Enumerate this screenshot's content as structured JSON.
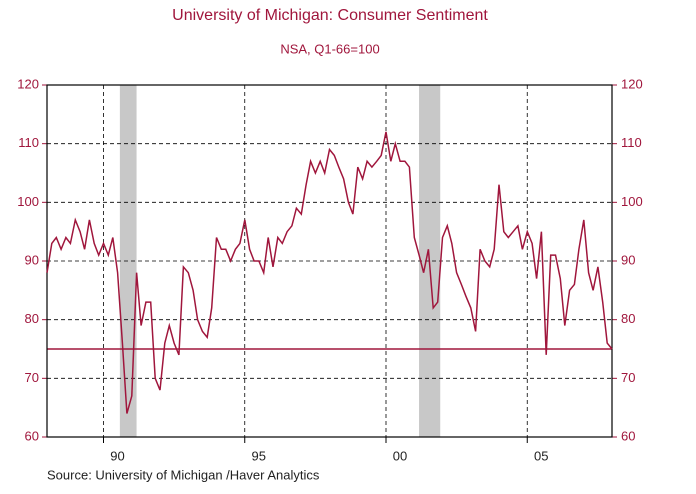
{
  "chart_data": {
    "type": "line",
    "title": "University of Michigan: Consumer Sentiment",
    "subtitle": "NSA, Q1-66=100",
    "source": "Source:  University of Michigan /Haver Analytics",
    "xlim": [
      1988,
      2008
    ],
    "xticks": [
      {
        "value": 1990,
        "label": "90"
      },
      {
        "value": 1995,
        "label": "95"
      },
      {
        "value": 2000,
        "label": "00"
      },
      {
        "value": 2005,
        "label": "05"
      }
    ],
    "ylim": [
      60,
      120
    ],
    "yticks": [
      60,
      70,
      80,
      90,
      100,
      110,
      120
    ],
    "grid": true,
    "reference_line": 75,
    "shaded_periods": [
      [
        1990.58,
        1991.17
      ],
      [
        2001.17,
        2001.92
      ]
    ],
    "series": [
      {
        "color": "#a0163c",
        "x": [
          1988,
          1988.17,
          1988.33,
          1988.5,
          1988.67,
          1988.83,
          1989,
          1989.17,
          1989.33,
          1989.5,
          1989.67,
          1989.83,
          1990,
          1990.17,
          1990.33,
          1990.5,
          1990.67,
          1990.83,
          1991,
          1991.17,
          1991.33,
          1991.5,
          1991.67,
          1991.83,
          1992,
          1992.17,
          1992.33,
          1992.5,
          1992.67,
          1992.83,
          1993,
          1993.17,
          1993.33,
          1993.5,
          1993.67,
          1993.83,
          1994,
          1994.17,
          1994.33,
          1994.5,
          1994.67,
          1994.83,
          1995,
          1995.17,
          1995.33,
          1995.5,
          1995.67,
          1995.83,
          1996,
          1996.17,
          1996.33,
          1996.5,
          1996.67,
          1996.83,
          1997,
          1997.17,
          1997.33,
          1997.5,
          1997.67,
          1997.83,
          1998,
          1998.17,
          1998.33,
          1998.5,
          1998.67,
          1998.83,
          1999,
          1999.17,
          1999.33,
          1999.5,
          1999.67,
          1999.83,
          2000,
          2000.17,
          2000.33,
          2000.5,
          2000.67,
          2000.83,
          2001,
          2001.17,
          2001.33,
          2001.5,
          2001.67,
          2001.83,
          2002,
          2002.17,
          2002.33,
          2002.5,
          2002.67,
          2002.83,
          2003,
          2003.17,
          2003.33,
          2003.5,
          2003.67,
          2003.83,
          2004,
          2004.17,
          2004.33,
          2004.5,
          2004.67,
          2004.83,
          2005,
          2005.17,
          2005.33,
          2005.5,
          2005.67,
          2005.83,
          2006,
          2006.17,
          2006.33,
          2006.5,
          2006.67,
          2006.83,
          2007,
          2007.17,
          2007.33,
          2007.5,
          2007.67,
          2007.83,
          2008
        ],
        "values": [
          88,
          93,
          94,
          92,
          94,
          93,
          97,
          95,
          92,
          97,
          93,
          91,
          93,
          91,
          94,
          88,
          76,
          64,
          67,
          88,
          79,
          83,
          83,
          70,
          68,
          76,
          79,
          76,
          74,
          89,
          88,
          85,
          80,
          78,
          77,
          82,
          94,
          92,
          92,
          90,
          92,
          93,
          97,
          92,
          90,
          90,
          88,
          94,
          89,
          94,
          93,
          95,
          96,
          99,
          98,
          103,
          107,
          105,
          107,
          105,
          109,
          108,
          106,
          104,
          100,
          98,
          106,
          104,
          107,
          106,
          107,
          108,
          112,
          107,
          110,
          107,
          107,
          106,
          94,
          91,
          88,
          92,
          82,
          83,
          94,
          96,
          93,
          88,
          86,
          84,
          82,
          78,
          92,
          90,
          89,
          92,
          103,
          95,
          94,
          95,
          96,
          92,
          95,
          93,
          87,
          95,
          74,
          91,
          91,
          87,
          79,
          85,
          86,
          92,
          97,
          88,
          85,
          89,
          83,
          76,
          75
        ]
      }
    ]
  }
}
